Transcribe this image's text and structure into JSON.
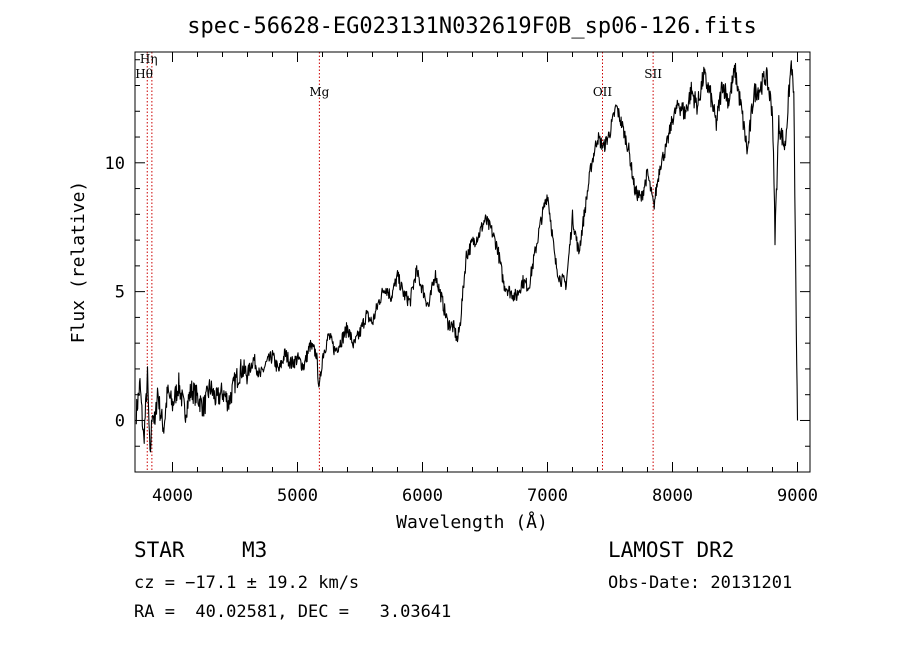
{
  "chart_data": {
    "type": "line",
    "title": "spec-56628-EG023131N032619F0B_sp06-126.fits",
    "xlabel": "Wavelength (Å)",
    "ylabel": "Flux (relative)",
    "xlim": [
      3700,
      9100
    ],
    "ylim": [
      -2,
      14.3
    ],
    "xticks": [
      4000,
      5000,
      6000,
      7000,
      8000,
      9000
    ],
    "yticks": [
      0,
      5,
      10
    ],
    "series_color": "#000000",
    "line_marker_color": "#cc0000",
    "lines": [
      {
        "name": "Hη",
        "x": 3835
      },
      {
        "name": "Hθ",
        "x": 3798
      },
      {
        "name": "Mg",
        "x": 5175
      },
      {
        "name": "OII",
        "x": 7440
      },
      {
        "name": "SII",
        "x": 7845
      }
    ],
    "series": [
      {
        "x": [
          3710,
          3740,
          3770,
          3800,
          3820,
          3840,
          3860,
          3880,
          3900,
          3930,
          3960,
          4000,
          4050,
          4100,
          4150,
          4200,
          4250,
          4300,
          4350,
          4400,
          4450,
          4500,
          4550,
          4600,
          4650,
          4700,
          4750,
          4800,
          4850,
          4900,
          4950,
          5000,
          5050,
          5100,
          5150,
          5175,
          5200,
          5250,
          5300,
          5350,
          5400,
          5450,
          5500,
          5550,
          5600,
          5650,
          5700,
          5750,
          5800,
          5850,
          5900,
          5950,
          6000,
          6050,
          6100,
          6150,
          6200,
          6250,
          6280,
          6300,
          6350,
          6400,
          6450,
          6500,
          6550,
          6600,
          6650,
          6700,
          6750,
          6800,
          6850,
          6900,
          6950,
          7000,
          7030,
          7060,
          7100,
          7150,
          7200,
          7250,
          7300,
          7350,
          7400,
          7450,
          7500,
          7550,
          7600,
          7650,
          7700,
          7750,
          7800,
          7850,
          7900,
          7950,
          8000,
          8050,
          8100,
          8150,
          8200,
          8250,
          8300,
          8350,
          8400,
          8450,
          8500,
          8550,
          8600,
          8650,
          8700,
          8750,
          8800,
          8820,
          8850,
          8900,
          8950,
          8970,
          8990,
          9000
        ],
        "y": [
          0.3,
          1.4,
          -0.8,
          1.7,
          -1.5,
          0.5,
          -0.2,
          1.2,
          0.4,
          -0.3,
          1.1,
          0.6,
          1.4,
          0.3,
          1.2,
          0.9,
          0.5,
          1.3,
          0.8,
          1.1,
          0.7,
          1.5,
          2.0,
          1.8,
          2.4,
          1.7,
          2.2,
          2.5,
          1.9,
          2.6,
          2.2,
          2.4,
          2.1,
          2.9,
          2.6,
          1.2,
          2.5,
          3.3,
          2.7,
          3.1,
          3.6,
          2.9,
          3.4,
          4.1,
          3.8,
          4.6,
          5.2,
          4.8,
          5.6,
          4.9,
          4.6,
          5.8,
          5.1,
          4.4,
          5.7,
          4.8,
          3.8,
          3.6,
          3.1,
          3.7,
          6.4,
          6.9,
          7.2,
          7.8,
          7.4,
          6.7,
          5.3,
          5.0,
          4.8,
          5.4,
          5.2,
          6.5,
          7.8,
          8.8,
          7.6,
          6.2,
          5.5,
          5.3,
          7.9,
          6.5,
          8.2,
          9.9,
          11.0,
          10.6,
          11.2,
          12.2,
          11.4,
          10.5,
          8.9,
          8.6,
          9.6,
          8.3,
          9.9,
          10.6,
          11.7,
          12.3,
          11.9,
          12.8,
          12.2,
          13.4,
          12.7,
          11.5,
          13.1,
          12.4,
          13.6,
          12.1,
          10.4,
          12.7,
          12.9,
          13.4,
          12.0,
          7.2,
          11.5,
          10.6,
          13.9,
          12.6,
          3.5,
          0.0
        ]
      }
    ]
  },
  "info": {
    "object_class": "STAR",
    "subclass": "M3",
    "survey": "LAMOST DR2",
    "redshift_line": "cz = −17.1 ± 19.2 km/s",
    "obs_date": "Obs-Date: 20131201",
    "coords": "RA =  40.02581, DEC =   3.03641"
  }
}
